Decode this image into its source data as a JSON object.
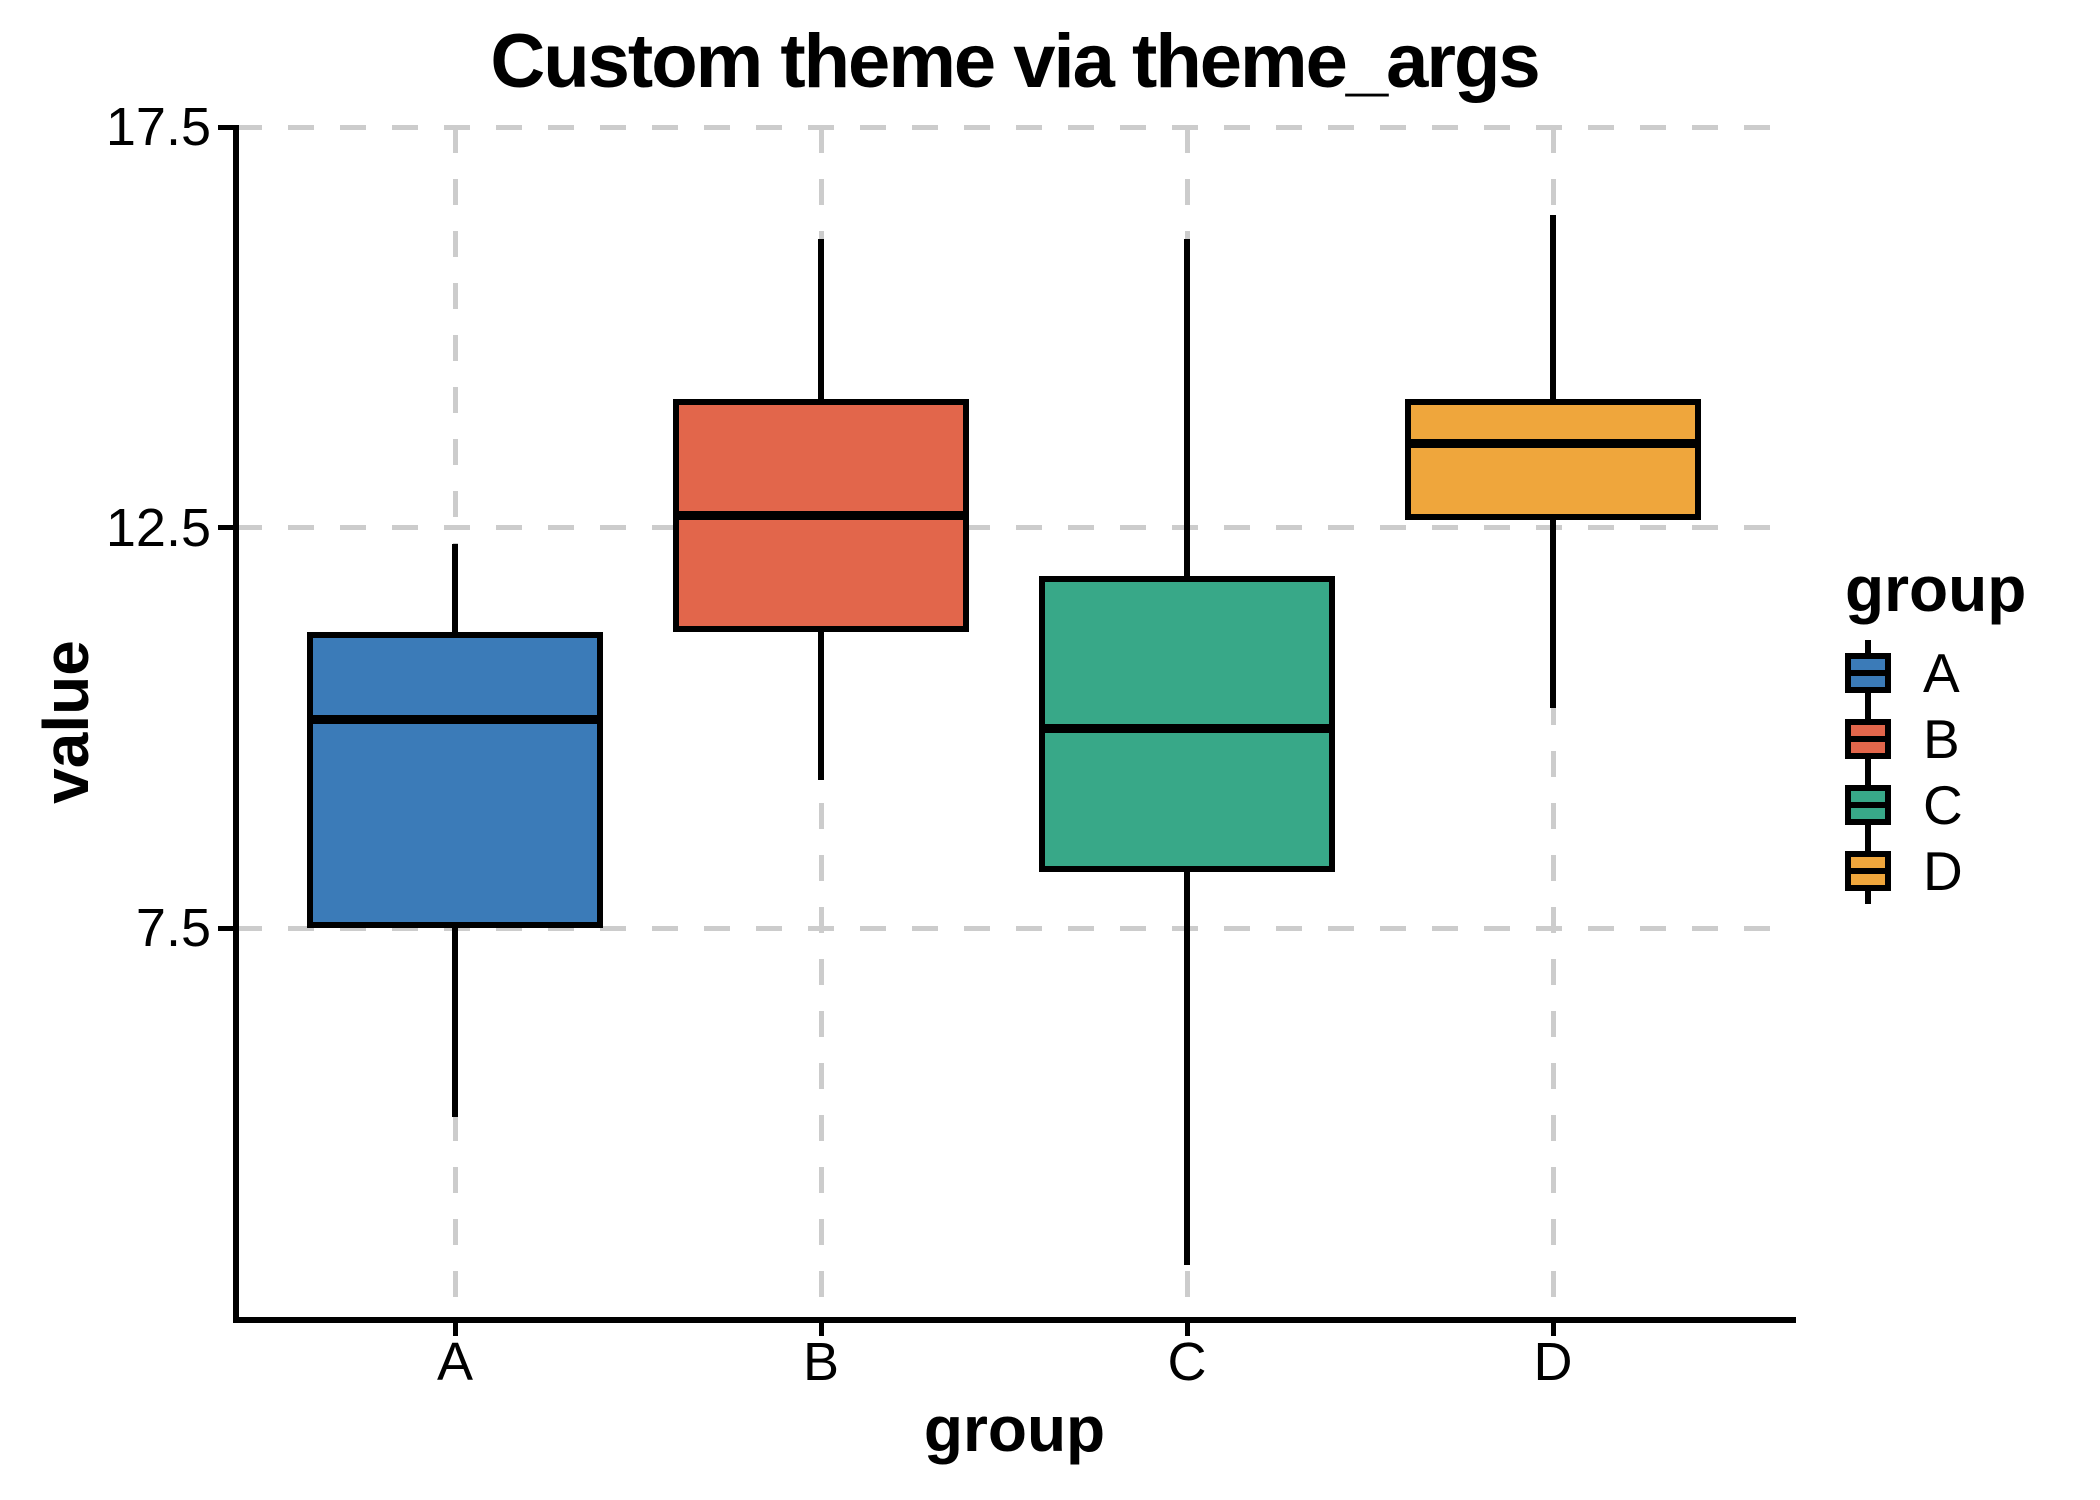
{
  "chart_data": {
    "type": "boxplot",
    "title": "Custom theme via theme_args",
    "xlabel": "group",
    "ylabel": "value",
    "categories": [
      "A",
      "B",
      "C",
      "D"
    ],
    "series": [
      {
        "name": "A",
        "color": "#3B7BB8",
        "whisker_low": 5.15,
        "q1": 7.5,
        "median": 10.1,
        "q3": 11.2,
        "whisker_high": 12.3
      },
      {
        "name": "B",
        "color": "#E2664B",
        "whisker_low": 9.35,
        "q1": 11.2,
        "median": 12.65,
        "q3": 14.1,
        "whisker_high": 16.1
      },
      {
        "name": "C",
        "color": "#38A888",
        "whisker_low": 3.3,
        "q1": 8.2,
        "median": 10.0,
        "q3": 11.9,
        "whisker_high": 16.1
      },
      {
        "name": "D",
        "color": "#EFA63C",
        "whisker_low": 10.25,
        "q1": 12.6,
        "median": 13.55,
        "q3": 14.1,
        "whisker_high": 16.4
      }
    ],
    "yticks": [
      7.5,
      12.5,
      17.5
    ],
    "ylim": [
      2.65,
      17.5
    ],
    "grid": {
      "style": "dashed",
      "color": "#CCCCCC",
      "horizontal": true,
      "vertical": true
    },
    "legend": {
      "title": "group",
      "position": "right",
      "entries": [
        "A",
        "B",
        "C",
        "D"
      ]
    },
    "colors": {
      "background": "#FFFFFF",
      "box_outline": "#000000",
      "median": "#000000",
      "axis": "#000000"
    }
  }
}
